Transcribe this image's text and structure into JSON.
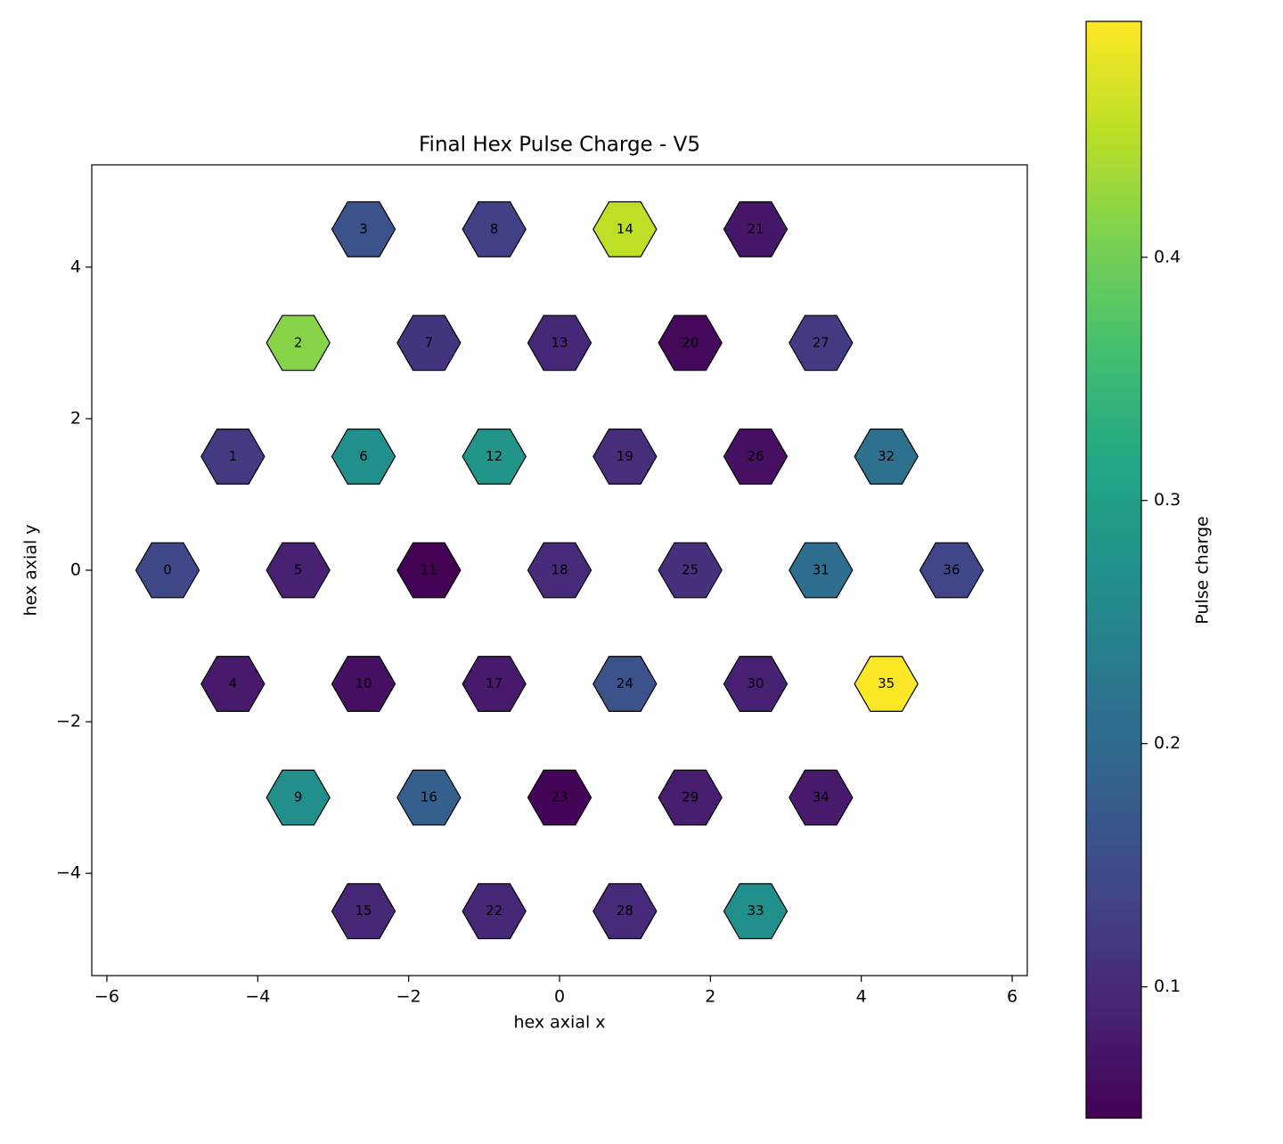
{
  "chart_data": {
    "type": "hexmap",
    "title": "Final Hex Pulse Charge - V5",
    "xlabel": "hex axial x",
    "ylabel": "hex axial y",
    "colorbar_label": "Pulse charge",
    "cmap": "viridis",
    "clim": [
      0.046,
      0.497
    ],
    "cticks": [
      0.1,
      0.2,
      0.3,
      0.4
    ],
    "xlim": [
      -6.2,
      6.2
    ],
    "ylim": [
      -5.35,
      5.35
    ],
    "xticks": [
      {
        "value": -6,
        "label": "−6"
      },
      {
        "value": -4,
        "label": "−4"
      },
      {
        "value": -2,
        "label": "−2"
      },
      0,
      2,
      4,
      6
    ],
    "yticks": [
      {
        "value": -4,
        "label": "−4"
      },
      {
        "value": -2,
        "label": "−2"
      },
      0,
      2,
      4
    ],
    "labels": [
      "0",
      "1",
      "2",
      "3",
      "4",
      "5",
      "6",
      "7",
      "8",
      "9",
      "10",
      "11",
      "12",
      "13",
      "14",
      "15",
      "16",
      "17",
      "18",
      "19",
      "20",
      "21",
      "22",
      "23",
      "24",
      "25",
      "26",
      "27",
      "28",
      "29",
      "30",
      "31",
      "32",
      "33",
      "34",
      "35",
      "36"
    ],
    "x": [
      -5.196,
      -4.33,
      -3.464,
      -2.598,
      -4.33,
      -3.464,
      -2.598,
      -1.732,
      -0.866,
      -3.464,
      -2.598,
      -1.732,
      -0.866,
      0,
      0.866,
      -2.598,
      -1.732,
      -0.866,
      0,
      0.866,
      1.732,
      2.598,
      -0.866,
      0,
      0.866,
      1.732,
      2.598,
      3.464,
      0.866,
      1.732,
      2.598,
      3.464,
      4.33,
      2.598,
      3.464,
      4.33,
      5.196
    ],
    "y": [
      0,
      1.5,
      3,
      4.5,
      -1.5,
      0,
      1.5,
      3,
      4.5,
      -3,
      -1.5,
      0,
      1.5,
      3,
      4.5,
      -4.5,
      -3,
      -1.5,
      0,
      1.5,
      3,
      4.5,
      -4.5,
      -3,
      -1.5,
      0,
      1.5,
      3,
      -4.5,
      -3,
      -1.5,
      0,
      1.5,
      -4.5,
      -3,
      -1.5,
      0
    ],
    "values": [
      0.145,
      0.123,
      0.416,
      0.159,
      0.078,
      0.087,
      0.27,
      0.114,
      0.132,
      0.267,
      0.064,
      0.047,
      0.28,
      0.096,
      0.452,
      0.096,
      0.181,
      0.078,
      0.1,
      0.105,
      0.055,
      0.073,
      0.096,
      0.051,
      0.159,
      0.109,
      0.064,
      0.123,
      0.1,
      0.082,
      0.087,
      0.208,
      0.213,
      0.27,
      0.078,
      0.495,
      0.14
    ]
  }
}
